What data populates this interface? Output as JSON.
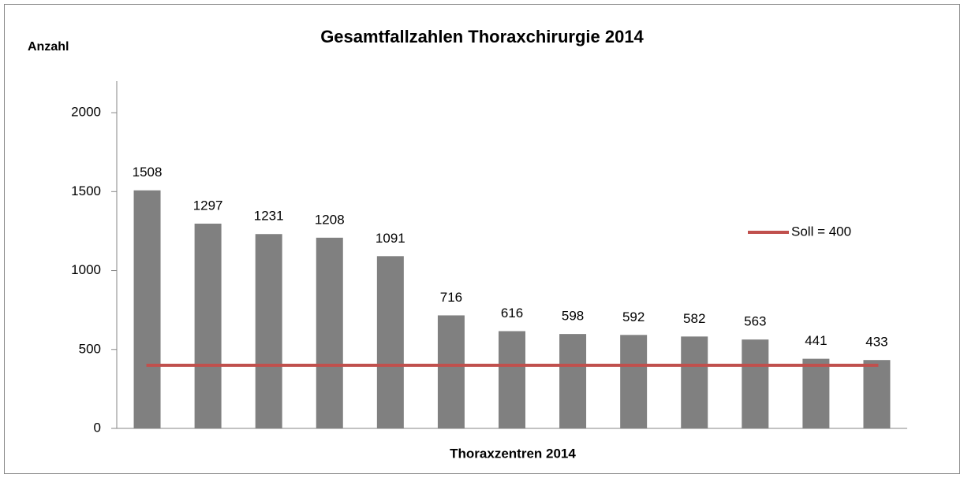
{
  "chart_data": {
    "type": "bar",
    "title": "Gesamtfallzahlen Thoraxchirurgie 2014",
    "y_label": "Anzahl",
    "x_label": "Thoraxzentren 2014",
    "categories": [
      null,
      null,
      null,
      null,
      null,
      null,
      null,
      null,
      null,
      null,
      null,
      null,
      null
    ],
    "values": [
      1508,
      1297,
      1231,
      1208,
      1091,
      716,
      616,
      598,
      592,
      582,
      563,
      441,
      433
    ],
    "color": "#808080",
    "reference_line": {
      "name": "Soll = 400",
      "value": 400,
      "color": "#c0504d"
    },
    "ylim": [
      0,
      2200
    ],
    "yticks": [
      0,
      500,
      1000,
      1500,
      2000
    ],
    "grid": false,
    "legend": "right"
  }
}
